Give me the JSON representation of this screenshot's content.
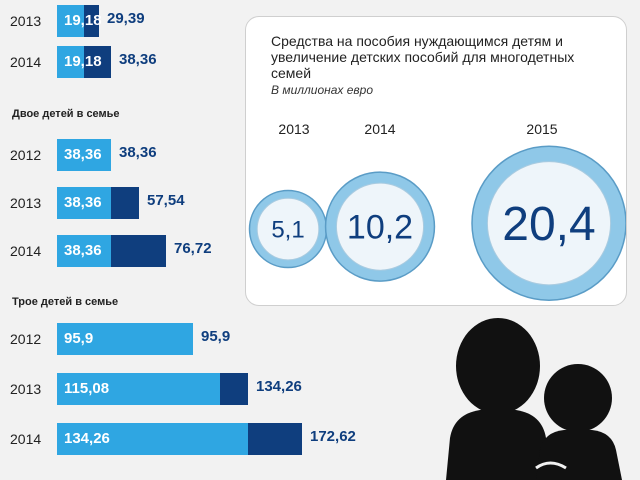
{
  "left_groups": [
    {
      "title": "",
      "rows": [
        {
          "year": "2013",
          "base_label": "19,18",
          "total_label": "29,39"
        },
        {
          "year": "2014",
          "base_label": "19,18",
          "total_label": "38,36"
        }
      ]
    },
    {
      "title": "Двое детей в семье",
      "rows": [
        {
          "year": "2012",
          "base_label": "38,36",
          "total_label": "38,36"
        },
        {
          "year": "2013",
          "base_label": "38,36",
          "total_label": "57,54"
        },
        {
          "year": "2014",
          "base_label": "38,36",
          "total_label": "76,72"
        }
      ]
    },
    {
      "title": "Трое детей в семье",
      "rows": [
        {
          "year": "2012",
          "base_label": "95,9",
          "total_label": "95,9"
        },
        {
          "year": "2013",
          "base_label": "115,08",
          "total_label": "134,26"
        },
        {
          "year": "2014",
          "base_label": "134,26",
          "total_label": "172,62"
        }
      ]
    }
  ],
  "info": {
    "title": "Средства на пособия нуждающимся детям и увеличение детских пособий для многодетных семей",
    "unit": "В миллионах евро",
    "coins": [
      {
        "year": "2013",
        "label": "5,1"
      },
      {
        "year": "2014",
        "label": "10,2"
      },
      {
        "year": "2015",
        "label": "20,4"
      }
    ]
  },
  "colors": {
    "base_bar": "#2fa6e2",
    "total_bar": "#0f3e7e",
    "coin_ring": "#8fc8e8",
    "people_icon": "#111111"
  },
  "icons": {
    "people": "mother-and-child-icon"
  },
  "chart_data": [
    {
      "type": "bar",
      "orientation": "horizontal",
      "stacked": true,
      "title": "",
      "groups": [
        {
          "name": "",
          "categories": [
            "2013",
            "2014"
          ],
          "base": [
            19.18,
            19.18
          ],
          "total": [
            29.39,
            38.36
          ]
        },
        {
          "name": "Двое детей в семье",
          "categories": [
            "2012",
            "2013",
            "2014"
          ],
          "base": [
            38.36,
            38.36,
            38.36
          ],
          "total": [
            38.36,
            57.54,
            76.72
          ]
        },
        {
          "name": "Трое детей в семье",
          "categories": [
            "2012",
            "2013",
            "2014"
          ],
          "base": [
            95.9,
            115.08,
            134.26
          ],
          "total": [
            95.9,
            134.26,
            172.62
          ]
        }
      ],
      "xlim": [
        0,
        180
      ],
      "grid": false,
      "legend": "none"
    },
    {
      "type": "bubble",
      "title": "Средства на пособия нуждающимся детям и увеличение детских пособий для многодетных семей",
      "unit": "В миллионах евро",
      "categories": [
        "2013",
        "2014",
        "2015"
      ],
      "values": [
        5.1,
        10.2,
        20.4
      ]
    }
  ]
}
